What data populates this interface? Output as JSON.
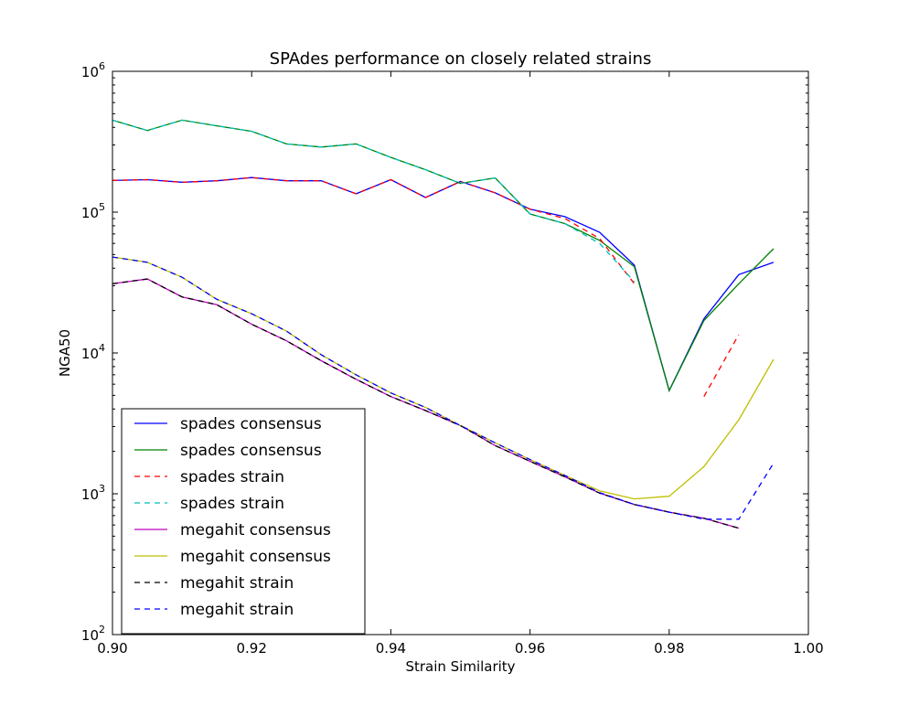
{
  "chart_data": {
    "type": "line",
    "title": "SPAdes performance on closely related strains",
    "xlabel": "Strain Similarity",
    "ylabel": "NGA50",
    "xlim": [
      0.9,
      1.0
    ],
    "ylim": [
      100,
      1000000
    ],
    "yscale": "log",
    "grid": false,
    "legend_position": "lower-left",
    "xticks": [
      "0.90",
      "0.92",
      "0.94",
      "0.96",
      "0.98",
      "1.00"
    ],
    "xtick_values": [
      0.9,
      0.92,
      0.94,
      0.96,
      0.98,
      1.0
    ],
    "yticks": [
      {
        "value": 100,
        "base": "10",
        "exp": "2"
      },
      {
        "value": 1000,
        "base": "10",
        "exp": "3"
      },
      {
        "value": 10000,
        "base": "10",
        "exp": "4"
      },
      {
        "value": 100000,
        "base": "10",
        "exp": "5"
      },
      {
        "value": 1000000,
        "base": "10",
        "exp": "6"
      }
    ],
    "series": [
      {
        "name": "spades consensus",
        "color": "#0000ff",
        "dash": false,
        "x": [
          0.9,
          0.905,
          0.91,
          0.915,
          0.92,
          0.925,
          0.93,
          0.935,
          0.94,
          0.945,
          0.95,
          0.955,
          0.96,
          0.965,
          0.97,
          0.975,
          0.98,
          0.985,
          0.99,
          0.995
        ],
        "y": [
          168000,
          170000,
          163000,
          167000,
          176000,
          167000,
          167000,
          135000,
          170000,
          127000,
          165000,
          137000,
          105000,
          93000,
          72000,
          42000,
          5400,
          17500,
          36000,
          44000
        ]
      },
      {
        "name": "spades consensus",
        "color": "#008000",
        "dash": false,
        "x": [
          0.9,
          0.905,
          0.91,
          0.915,
          0.92,
          0.925,
          0.93,
          0.935,
          0.94,
          0.945,
          0.95,
          0.955,
          0.96,
          0.965,
          0.97,
          0.975,
          0.98,
          0.985,
          0.99,
          0.995
        ],
        "y": [
          450000,
          380000,
          450000,
          410000,
          375000,
          305000,
          290000,
          305000,
          245000,
          200000,
          160000,
          175000,
          97000,
          83000,
          63000,
          41000,
          5400,
          17000,
          31000,
          55000
        ]
      },
      {
        "name": "spades strain",
        "color": "#ff0000",
        "dash": true,
        "x": [
          0.9,
          0.905,
          0.91,
          0.915,
          0.92,
          0.925,
          0.93,
          0.935,
          0.94,
          0.945,
          0.95,
          0.955,
          0.96,
          0.965,
          0.97,
          0.975
        ],
        "y": [
          168000,
          170000,
          163000,
          167000,
          176000,
          167000,
          167000,
          135000,
          170000,
          127000,
          165000,
          137000,
          105000,
          90000,
          65000,
          31000
        ],
        "x2": [
          0.985,
          0.99
        ],
        "y2": [
          4900,
          13500
        ]
      },
      {
        "name": "spades strain",
        "color": "#00bfbf",
        "dash": true,
        "x": [
          0.9,
          0.905,
          0.91,
          0.915,
          0.92,
          0.925,
          0.93,
          0.935,
          0.94,
          0.945,
          0.95,
          0.955,
          0.96,
          0.965,
          0.97,
          0.975
        ],
        "y": [
          450000,
          380000,
          450000,
          410000,
          375000,
          305000,
          290000,
          305000,
          245000,
          200000,
          160000,
          175000,
          97000,
          83000,
          60000,
          32000
        ]
      },
      {
        "name": "megahit consensus",
        "color": "#bf00bf",
        "dash": false,
        "x": [
          0.9,
          0.905,
          0.91,
          0.915,
          0.92,
          0.925,
          0.93,
          0.935,
          0.94,
          0.945,
          0.95,
          0.955,
          0.96,
          0.965,
          0.97,
          0.975,
          0.98,
          0.985,
          0.99
        ],
        "y": [
          31000,
          33500,
          25000,
          22000,
          16000,
          12200,
          8800,
          6500,
          4900,
          3900,
          3050,
          2200,
          1700,
          1320,
          1010,
          840,
          740,
          670,
          570
        ]
      },
      {
        "name": "megahit consensus",
        "color": "#bfbf00",
        "dash": false,
        "x": [
          0.9,
          0.905,
          0.91,
          0.915,
          0.92,
          0.925,
          0.93,
          0.935,
          0.94,
          0.945,
          0.95,
          0.955,
          0.96,
          0.965,
          0.97,
          0.975,
          0.98,
          0.985,
          0.99,
          0.995
        ],
        "y": [
          48000,
          44000,
          34500,
          24000,
          19000,
          14300,
          9700,
          7000,
          5200,
          4100,
          3050,
          2300,
          1750,
          1350,
          1050,
          920,
          960,
          1560,
          3350,
          9000
        ]
      },
      {
        "name": "megahit strain",
        "color": "#000000",
        "dash": true,
        "x": [
          0.9,
          0.905,
          0.91,
          0.915,
          0.92,
          0.925,
          0.93,
          0.935,
          0.94,
          0.945,
          0.95,
          0.955,
          0.96,
          0.965,
          0.97,
          0.975,
          0.98,
          0.985,
          0.99
        ],
        "y": [
          31000,
          33500,
          25000,
          22000,
          16000,
          12200,
          8800,
          6500,
          4900,
          3900,
          3050,
          2200,
          1700,
          1320,
          1010,
          840,
          740,
          670,
          570
        ]
      },
      {
        "name": "megahit strain",
        "color": "#0000ff",
        "dash": true,
        "x": [
          0.9,
          0.905,
          0.91,
          0.915,
          0.92,
          0.925,
          0.93,
          0.935,
          0.94,
          0.945,
          0.95,
          0.955,
          0.96,
          0.965,
          0.97,
          0.975,
          0.98,
          0.985,
          0.99,
          0.995
        ],
        "y": [
          48000,
          44000,
          34500,
          24000,
          19000,
          14300,
          9700,
          7000,
          5200,
          4100,
          3050,
          2300,
          1750,
          1350,
          1020,
          840,
          740,
          660,
          660,
          1650
        ]
      }
    ]
  }
}
